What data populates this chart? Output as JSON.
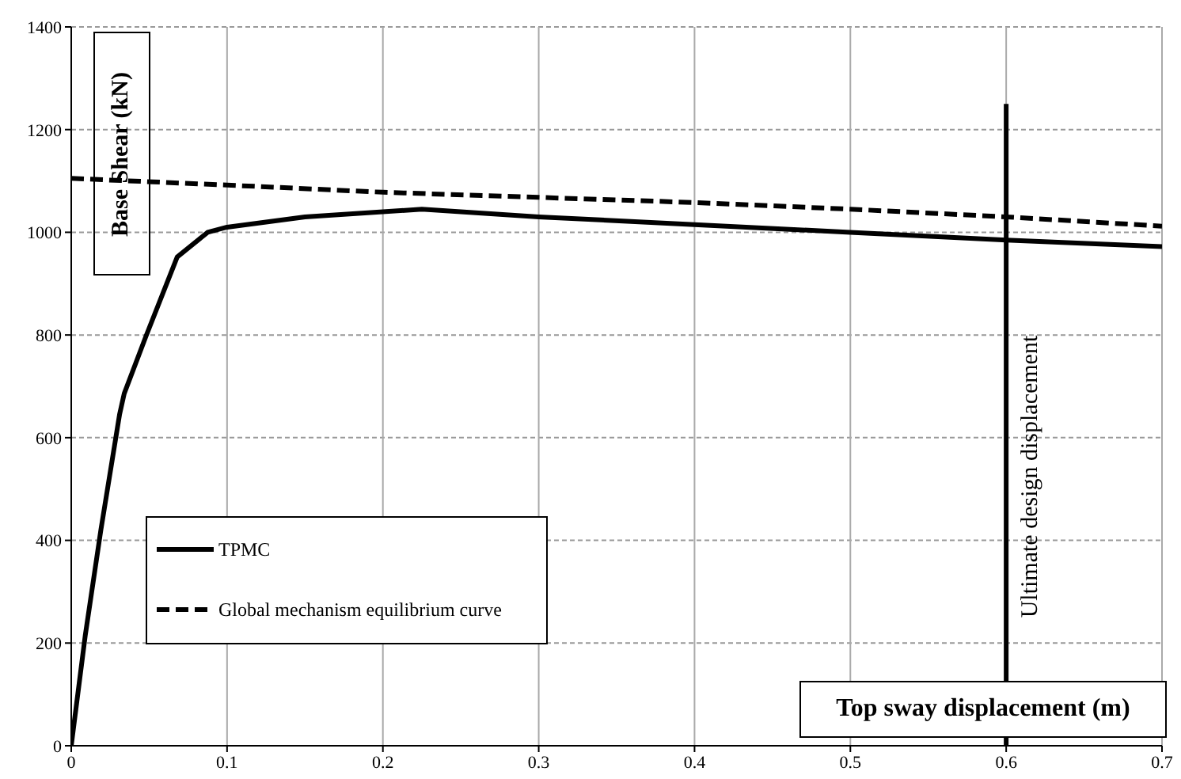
{
  "chart_data": {
    "type": "line",
    "xlabel": "Top sway displacement (m)",
    "ylabel": "Base Shear (kN)",
    "xlim": [
      0,
      0.7
    ],
    "xticks": [
      0,
      0.1,
      0.2,
      0.3,
      0.4,
      0.5,
      0.6,
      0.7
    ],
    "ylim": [
      0,
      1400
    ],
    "yticks": [
      0,
      200,
      400,
      600,
      800,
      1000,
      1200,
      1400
    ],
    "grid": true,
    "legend": "bottom left",
    "marker": "none",
    "series": [
      {
        "name": "TPMC",
        "color": "#000000",
        "line_style": "solid",
        "x": [
          0,
          0.009,
          0.019,
          0.031,
          0.034,
          0.048,
          0.068,
          0.0876,
          0.1,
          0.15,
          0.225,
          0.3,
          0.4,
          0.5,
          0.6,
          0.7
        ],
        "values": [
          0,
          215,
          420,
          645,
          686,
          798,
          952,
          1000,
          1010,
          1030,
          1045,
          1030,
          1015,
          1000,
          985,
          972
        ]
      },
      {
        "name": "Global mechanism equilibrium curve",
        "color": "#000000",
        "line_style": "dashed",
        "x": [
          0,
          0.1,
          0.2,
          0.3,
          0.4,
          0.5,
          0.6,
          0.7
        ],
        "values": [
          1105,
          1092,
          1078,
          1068,
          1058,
          1045,
          1030,
          1012
        ]
      },
      {
        "color": "#000000",
        "line_style": "solid",
        "x": [
          0.6,
          0.6
        ],
        "values": [
          0,
          1250
        ]
      }
    ],
    "annotations": [
      {
        "text": "Ultimate design displacement",
        "x": 0.6,
        "y": 525
      }
    ]
  }
}
